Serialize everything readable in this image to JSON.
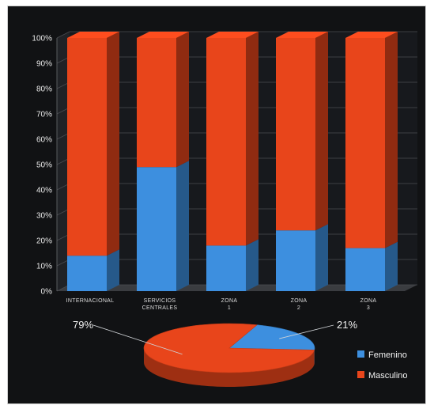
{
  "chart_data": [
    {
      "type": "bar",
      "stacked": true,
      "percent_stacked": true,
      "categories": [
        "INTERNACIONAL",
        "SERVICIOS CENTRALES",
        "ZONA 1",
        "ZONA 2",
        "ZONA 3"
      ],
      "series": [
        {
          "values": [
            14,
            49,
            18,
            24,
            17
          ],
          "color": "#3d8fdf"
        },
        {
          "values": [
            86,
            51,
            82,
            76,
            83
          ],
          "color": "#e8451b"
        }
      ],
      "ylim": [
        0,
        100
      ],
      "y_ticks": [
        "0%",
        "10%",
        "20%",
        "30%",
        "40%",
        "50%",
        "60%",
        "70%",
        "80%",
        "90%",
        "100%"
      ],
      "grid": true,
      "style": "3d"
    },
    {
      "type": "pie",
      "style": "3d",
      "slices": [
        {
          "label": "Femenino",
          "value": 21,
          "display": "21%",
          "color": "#3d8fdf"
        },
        {
          "label": "Masculino",
          "value": 79,
          "display": "79%",
          "color": "#e8451b"
        }
      ],
      "legend": "right"
    }
  ]
}
